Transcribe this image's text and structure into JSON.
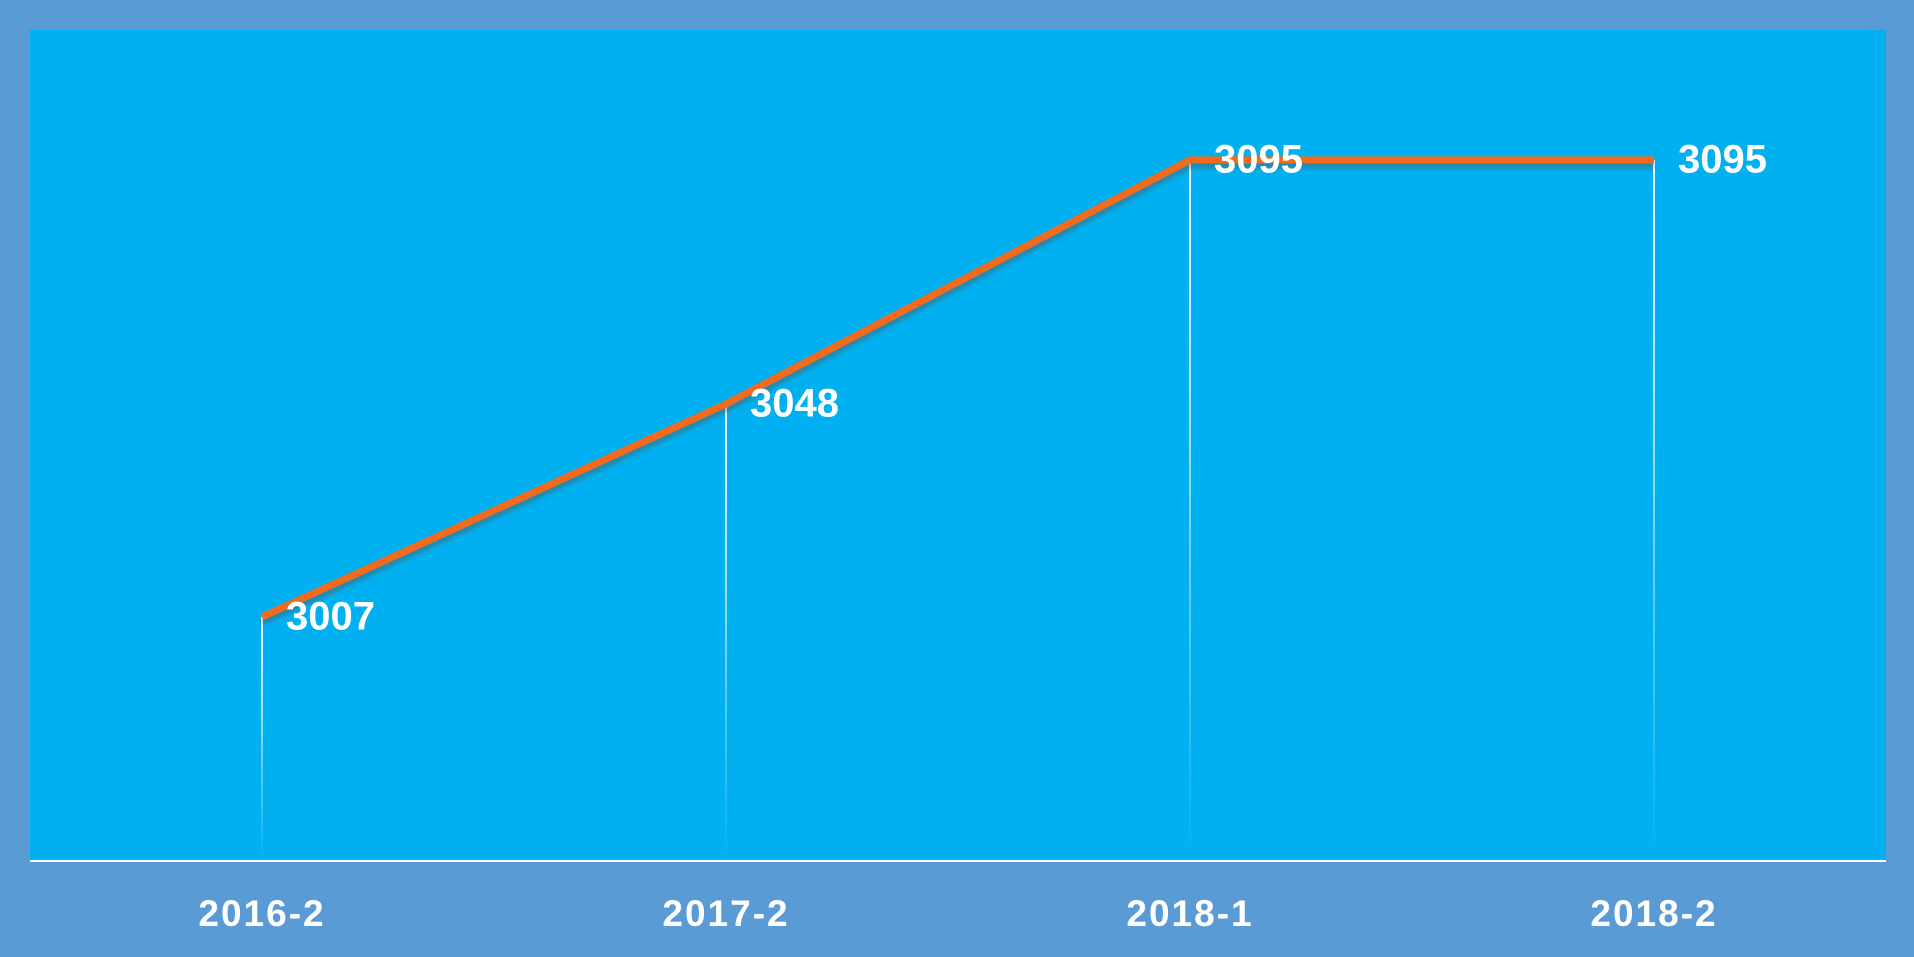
{
  "chart_data": {
    "type": "line",
    "categories": [
      "2016-2",
      "2017-2",
      "2018-1",
      "2018-2"
    ],
    "values": [
      3007,
      3048,
      3095,
      3095
    ],
    "color": "#f26b1d",
    "ylim": [
      2960,
      3120
    ]
  }
}
